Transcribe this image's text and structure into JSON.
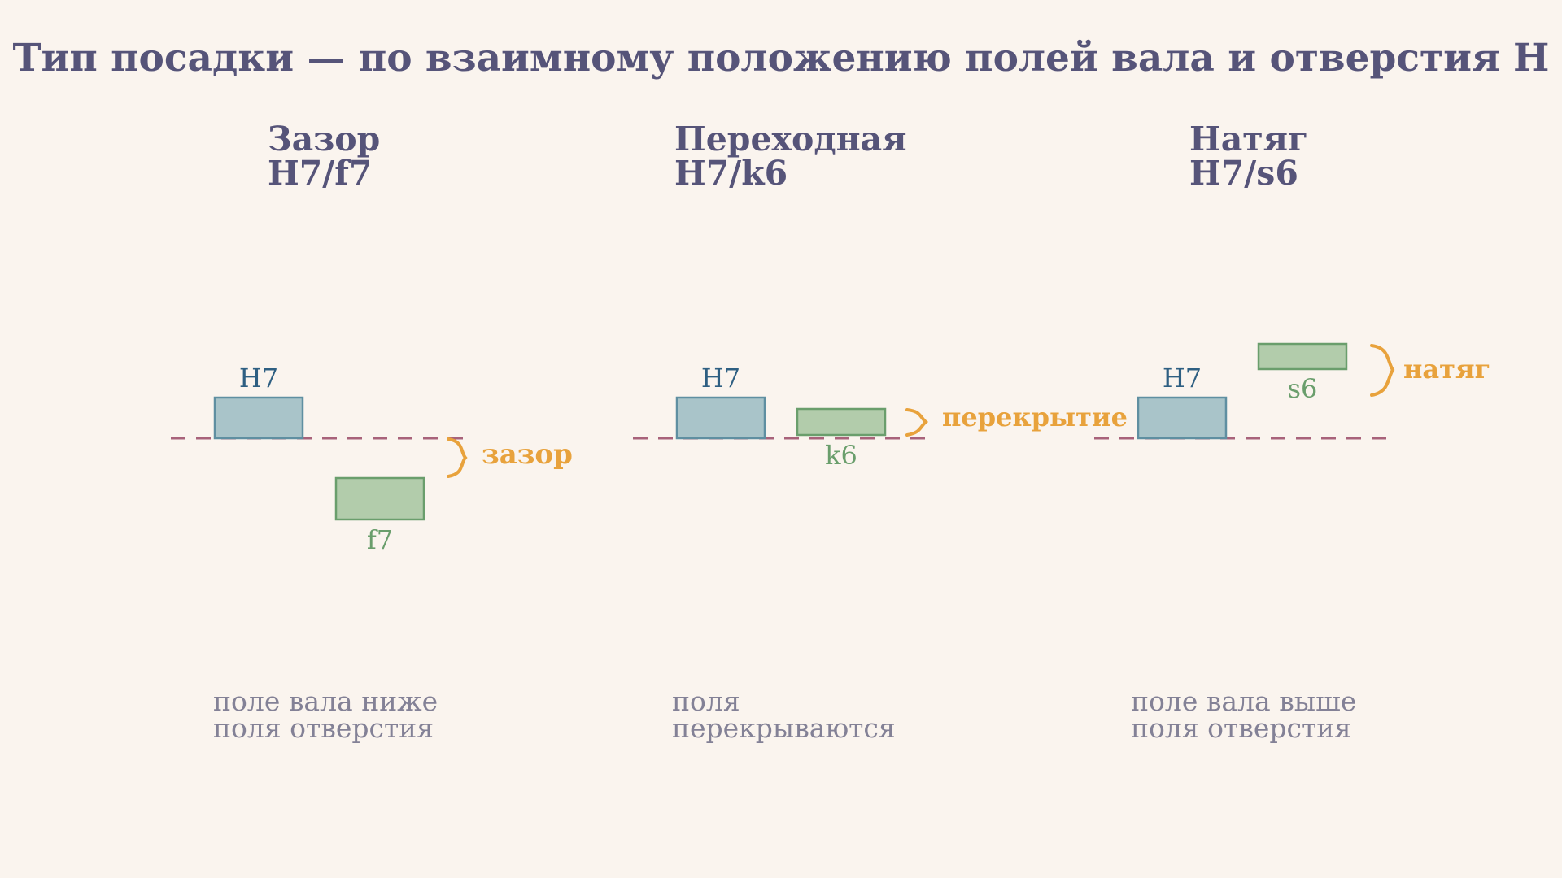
{
  "title": "Тип посадки — по взаимному положению полей вала и отверстия H",
  "colors": {
    "title": "#565479",
    "hole_fill": "#a9c4c9",
    "hole_stroke": "#5f8fa1",
    "hole_label": "#2e5f82",
    "shaft_fill": "#b2ccab",
    "shaft_stroke": "#6a9e6c",
    "shaft_label": "#6a9e6c",
    "zero_line": "#a8627a",
    "accent": "#e8a23c",
    "caption": "#838196"
  },
  "columns": [
    {
      "name": "Зазор",
      "fit": "H7/f7",
      "hole_label": "H7",
      "shaft_label": "f7",
      "relation_label": "зазор",
      "caption_lines": [
        "поле вала ниже",
        "поля отверстия"
      ]
    },
    {
      "name": "Переходная",
      "fit": "H7/k6",
      "hole_label": "H7",
      "shaft_label": "k6",
      "relation_label": "перекрытие",
      "caption_lines": [
        "поля",
        "перекрываются"
      ]
    },
    {
      "name": "Натяг",
      "fit": "H7/s6",
      "hole_label": "H7",
      "shaft_label": "s6",
      "relation_label": "натяг",
      "caption_lines": [
        "поле вала выше",
        "поля отверстия"
      ]
    }
  ]
}
